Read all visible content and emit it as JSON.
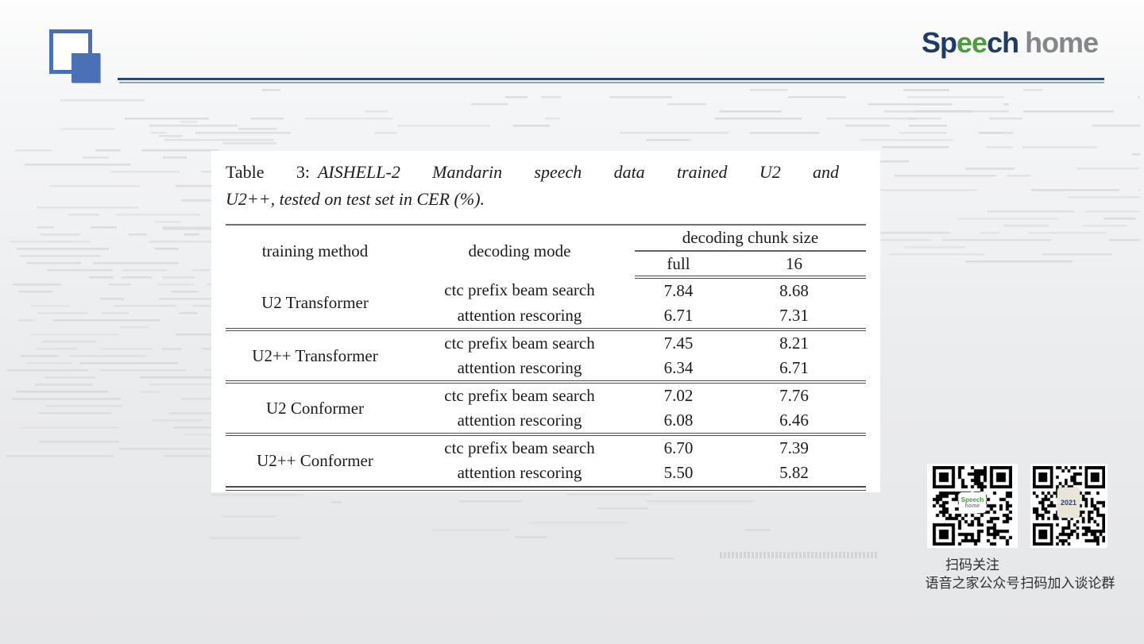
{
  "branding": {
    "speech_p1": "Sp",
    "speech_ee": "ee",
    "speech_p2": "ch",
    "home": "home"
  },
  "caption": {
    "label": "Table 3:",
    "line1": "AISHELL-2 Mandarin speech data trained U2 and",
    "line2": "U2++, tested on test set in CER (%)."
  },
  "chart_data": {
    "type": "table",
    "title": "Table 3: AISHELL-2 Mandarin speech data trained U2 and U2++, tested on test set in CER (%).",
    "col_headers": [
      "training method",
      "decoding mode",
      "full",
      "16"
    ],
    "chunk_header": "decoding chunk size",
    "groups": [
      {
        "method": "U2 Transformer",
        "rows": [
          {
            "mode": "ctc prefix beam search",
            "full": "7.84",
            "c16": "8.68"
          },
          {
            "mode": "attention rescoring",
            "full": "6.71",
            "c16": "7.31"
          }
        ]
      },
      {
        "method": "U2++ Transformer",
        "rows": [
          {
            "mode": "ctc prefix beam search",
            "full": "7.45",
            "c16": "8.21"
          },
          {
            "mode": "attention rescoring",
            "full": "6.34",
            "c16": "6.71"
          }
        ]
      },
      {
        "method": "U2 Conformer",
        "rows": [
          {
            "mode": "ctc prefix beam search",
            "full": "7.02",
            "c16": "7.76"
          },
          {
            "mode": "attention rescoring",
            "full": "6.08",
            "c16": "6.46"
          }
        ]
      },
      {
        "method": "U2++ Conformer",
        "rows": [
          {
            "mode": "ctc prefix beam search",
            "full": "6.70",
            "c16": "7.39"
          },
          {
            "mode": "attention rescoring",
            "full": "5.50",
            "c16": "5.82"
          }
        ]
      }
    ]
  },
  "table_header": {
    "training_method": "training method",
    "decoding_mode": "decoding mode",
    "chunk": "decoding chunk size",
    "full": "full",
    "c16": "16"
  },
  "qr": {
    "left_center_top": "Speech",
    "left_center_bottom": "home",
    "right_center": "2021",
    "caption_line1": "扫码关注",
    "caption_line2": "语音之家公众号",
    "caption_right": "扫码加入谈论群"
  },
  "colors": {
    "accent_blue": "#4a70b6",
    "navy": "#1e3a66",
    "green": "#4d9b43",
    "gray_logo": "#85888b",
    "rule_navy": "#24477e",
    "rule_gray": "#9b9ea3"
  }
}
